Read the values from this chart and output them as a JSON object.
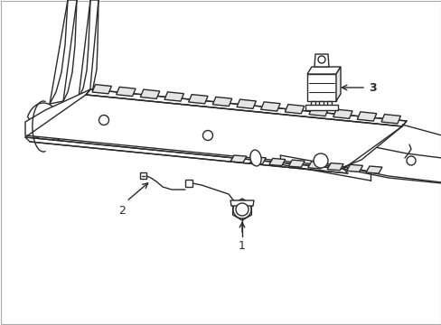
{
  "bg_color": "#ffffff",
  "line_color": "#2a2a2a",
  "line_width": 1.0,
  "fig_width": 4.89,
  "fig_height": 3.6,
  "dpi": 100,
  "label_1": "1",
  "label_2": "2",
  "label_3": "3",
  "label_fontsize": 9
}
